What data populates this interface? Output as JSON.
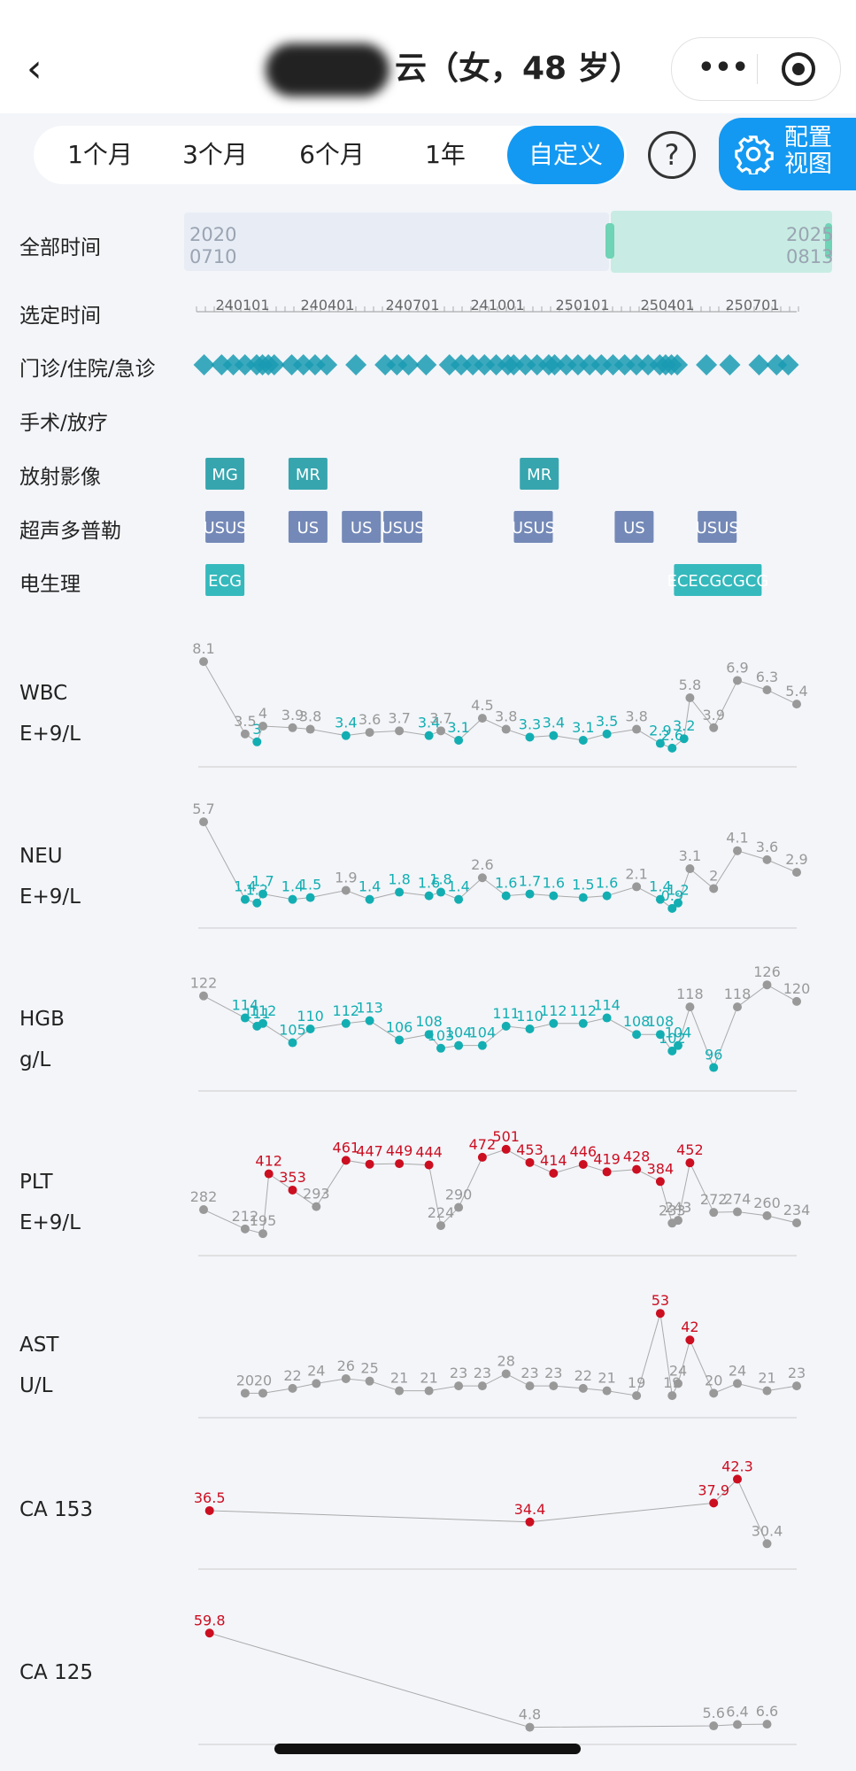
{
  "header": {
    "back_icon": "chevron-left-icon",
    "title_suffix": "云（女，48 岁）",
    "more_icon": "more-dots-icon",
    "target_icon": "record-target-icon"
  },
  "tabs": [
    {
      "label": "1个月",
      "active": false
    },
    {
      "label": "3个月",
      "active": false
    },
    {
      "label": "6个月",
      "active": false
    },
    {
      "label": "1年",
      "active": false
    },
    {
      "label": "自定义",
      "active": true
    }
  ],
  "help_label": "?",
  "config_label": "配置视图",
  "rows": {
    "all_time": "全部时间",
    "selected_time": "选定时间",
    "visits": "门诊/住院/急诊",
    "surgery": "手术/放疗",
    "radiology": "放射影像",
    "ultrasound": "超声多普勒",
    "electro": "电生理"
  },
  "range": {
    "start_year": "2020",
    "start_md": "0710",
    "end_year": "2025",
    "end_md": "0813"
  },
  "time_ticks": [
    "240101",
    "240401",
    "240701",
    "241001",
    "250101",
    "250401",
    "250701"
  ],
  "colors": {
    "accent": "#1399f2",
    "teal": "#13aeb2",
    "gray": "#999999",
    "red": "#cc0e21",
    "diamond": "#1a9bb3",
    "us": "#5d76ab"
  },
  "imaging": {
    "radiology": [
      {
        "t": 0.03,
        "label": "MG"
      },
      {
        "t": 0.17,
        "label": "MR"
      },
      {
        "t": 0.56,
        "label": "MR"
      }
    ],
    "ultrasound": [
      {
        "t": 0.03,
        "label": "USUS"
      },
      {
        "t": 0.17,
        "label": "US"
      },
      {
        "t": 0.26,
        "label": "US"
      },
      {
        "t": 0.33,
        "label": "USUS"
      },
      {
        "t": 0.55,
        "label": "USUS"
      },
      {
        "t": 0.72,
        "label": "US"
      },
      {
        "t": 0.86,
        "label": "USUS"
      }
    ],
    "electro": [
      {
        "t": 0.03,
        "label": "ECG"
      },
      {
        "t": 0.82,
        "label": "ECECGCGCG"
      }
    ]
  },
  "chart_data": [
    {
      "type": "line",
      "name": "WBC",
      "unit": "E+9/L",
      "points": [
        {
          "t": 0.0,
          "v": 8.1,
          "s": "n"
        },
        {
          "t": 0.07,
          "v": 3.5,
          "s": "n"
        },
        {
          "t": 0.09,
          "v": 3,
          "s": "l"
        },
        {
          "t": 0.1,
          "v": 4,
          "s": "n"
        },
        {
          "t": 0.15,
          "v": 3.9,
          "s": "n"
        },
        {
          "t": 0.18,
          "v": 3.8,
          "s": "n"
        },
        {
          "t": 0.24,
          "v": 3.4,
          "s": "l"
        },
        {
          "t": 0.28,
          "v": 3.6,
          "s": "n"
        },
        {
          "t": 0.33,
          "v": 3.7,
          "s": "n"
        },
        {
          "t": 0.38,
          "v": 3.4,
          "s": "l"
        },
        {
          "t": 0.4,
          "v": 3.7,
          "s": "n"
        },
        {
          "t": 0.43,
          "v": 3.1,
          "s": "l"
        },
        {
          "t": 0.47,
          "v": 4.5,
          "s": "n"
        },
        {
          "t": 0.51,
          "v": 3.8,
          "s": "n"
        },
        {
          "t": 0.55,
          "v": 3.3,
          "s": "l"
        },
        {
          "t": 0.59,
          "v": 3.4,
          "s": "l"
        },
        {
          "t": 0.64,
          "v": 3.1,
          "s": "l"
        },
        {
          "t": 0.68,
          "v": 3.5,
          "s": "l"
        },
        {
          "t": 0.73,
          "v": 3.8,
          "s": "n"
        },
        {
          "t": 0.77,
          "v": 2.9,
          "s": "l"
        },
        {
          "t": 0.79,
          "v": 2.6,
          "s": "l"
        },
        {
          "t": 0.81,
          "v": 3.2,
          "s": "l"
        },
        {
          "t": 0.82,
          "v": 5.8,
          "s": "n"
        },
        {
          "t": 0.86,
          "v": 3.9,
          "s": "n"
        },
        {
          "t": 0.9,
          "v": 6.9,
          "s": "n"
        },
        {
          "t": 0.95,
          "v": 6.3,
          "s": "n"
        },
        {
          "t": 1.0,
          "v": 5.4,
          "s": "n"
        }
      ],
      "min": 2.2,
      "max": 8.5
    },
    {
      "type": "line",
      "name": "NEU",
      "unit": "E+9/L",
      "points": [
        {
          "t": 0.0,
          "v": 5.7,
          "s": "n"
        },
        {
          "t": 0.07,
          "v": 1.4,
          "s": "l"
        },
        {
          "t": 0.09,
          "v": 1.2,
          "s": "l"
        },
        {
          "t": 0.1,
          "v": 1.7,
          "s": "l"
        },
        {
          "t": 0.15,
          "v": 1.4,
          "s": "l"
        },
        {
          "t": 0.18,
          "v": 1.5,
          "s": "l"
        },
        {
          "t": 0.24,
          "v": 1.9,
          "s": "n"
        },
        {
          "t": 0.28,
          "v": 1.4,
          "s": "l"
        },
        {
          "t": 0.33,
          "v": 1.8,
          "s": "l"
        },
        {
          "t": 0.38,
          "v": 1.6,
          "s": "l"
        },
        {
          "t": 0.4,
          "v": 1.8,
          "s": "l"
        },
        {
          "t": 0.43,
          "v": 1.4,
          "s": "l"
        },
        {
          "t": 0.47,
          "v": 2.6,
          "s": "n"
        },
        {
          "t": 0.51,
          "v": 1.6,
          "s": "l"
        },
        {
          "t": 0.55,
          "v": 1.7,
          "s": "l"
        },
        {
          "t": 0.59,
          "v": 1.6,
          "s": "l"
        },
        {
          "t": 0.64,
          "v": 1.5,
          "s": "l"
        },
        {
          "t": 0.68,
          "v": 1.6,
          "s": "l"
        },
        {
          "t": 0.73,
          "v": 2.1,
          "s": "n"
        },
        {
          "t": 0.77,
          "v": 1.4,
          "s": "l"
        },
        {
          "t": 0.79,
          "v": 0.9,
          "s": "l"
        },
        {
          "t": 0.8,
          "v": 1.2,
          "s": "l"
        },
        {
          "t": 0.82,
          "v": 3.1,
          "s": "n"
        },
        {
          "t": 0.86,
          "v": 2,
          "s": "n"
        },
        {
          "t": 0.9,
          "v": 4.1,
          "s": "n"
        },
        {
          "t": 0.95,
          "v": 3.6,
          "s": "n"
        },
        {
          "t": 1.0,
          "v": 2.9,
          "s": "n"
        }
      ],
      "min": 0.5,
      "max": 6
    },
    {
      "type": "line",
      "name": "HGB",
      "unit": "g/L",
      "points": [
        {
          "t": 0.0,
          "v": 122,
          "s": "n"
        },
        {
          "t": 0.07,
          "v": 114,
          "s": "l"
        },
        {
          "t": 0.09,
          "v": 111,
          "s": "l"
        },
        {
          "t": 0.1,
          "v": 112,
          "s": "l"
        },
        {
          "t": 0.15,
          "v": 105,
          "s": "l"
        },
        {
          "t": 0.18,
          "v": 110,
          "s": "l"
        },
        {
          "t": 0.24,
          "v": 112,
          "s": "l"
        },
        {
          "t": 0.28,
          "v": 113,
          "s": "l"
        },
        {
          "t": 0.33,
          "v": 106,
          "s": "l"
        },
        {
          "t": 0.38,
          "v": 108,
          "s": "l"
        },
        {
          "t": 0.4,
          "v": 103,
          "s": "l"
        },
        {
          "t": 0.43,
          "v": 104,
          "s": "l"
        },
        {
          "t": 0.47,
          "v": 104,
          "s": "l"
        },
        {
          "t": 0.51,
          "v": 111,
          "s": "l"
        },
        {
          "t": 0.55,
          "v": 110,
          "s": "l"
        },
        {
          "t": 0.59,
          "v": 112,
          "s": "l"
        },
        {
          "t": 0.64,
          "v": 112,
          "s": "l"
        },
        {
          "t": 0.68,
          "v": 114,
          "s": "l"
        },
        {
          "t": 0.73,
          "v": 108,
          "s": "l"
        },
        {
          "t": 0.77,
          "v": 108,
          "s": "l"
        },
        {
          "t": 0.79,
          "v": 102,
          "s": "l"
        },
        {
          "t": 0.8,
          "v": 104,
          "s": "l"
        },
        {
          "t": 0.82,
          "v": 118,
          "s": "n"
        },
        {
          "t": 0.86,
          "v": 96,
          "s": "l"
        },
        {
          "t": 0.9,
          "v": 118,
          "s": "n"
        },
        {
          "t": 0.95,
          "v": 126,
          "s": "n"
        },
        {
          "t": 1.0,
          "v": 120,
          "s": "n"
        }
      ],
      "min": 92,
      "max": 128
    },
    {
      "type": "line",
      "name": "PLT",
      "unit": "E+9/L",
      "points": [
        {
          "t": 0.0,
          "v": 282,
          "s": "n"
        },
        {
          "t": 0.07,
          "v": 212,
          "s": "n"
        },
        {
          "t": 0.1,
          "v": 195,
          "s": "n"
        },
        {
          "t": 0.11,
          "v": 412,
          "s": "h"
        },
        {
          "t": 0.15,
          "v": 353,
          "s": "h"
        },
        {
          "t": 0.19,
          "v": 293,
          "s": "n"
        },
        {
          "t": 0.24,
          "v": 461,
          "s": "h"
        },
        {
          "t": 0.28,
          "v": 447,
          "s": "h"
        },
        {
          "t": 0.33,
          "v": 449,
          "s": "h"
        },
        {
          "t": 0.38,
          "v": 444,
          "s": "h"
        },
        {
          "t": 0.4,
          "v": 224,
          "s": "n"
        },
        {
          "t": 0.43,
          "v": 290,
          "s": "n"
        },
        {
          "t": 0.47,
          "v": 472,
          "s": "h"
        },
        {
          "t": 0.51,
          "v": 501,
          "s": "h"
        },
        {
          "t": 0.55,
          "v": 453,
          "s": "h"
        },
        {
          "t": 0.59,
          "v": 414,
          "s": "h"
        },
        {
          "t": 0.64,
          "v": 446,
          "s": "h"
        },
        {
          "t": 0.68,
          "v": 419,
          "s": "h"
        },
        {
          "t": 0.73,
          "v": 428,
          "s": "h"
        },
        {
          "t": 0.77,
          "v": 384,
          "s": "h"
        },
        {
          "t": 0.79,
          "v": 233,
          "s": "n"
        },
        {
          "t": 0.8,
          "v": 243,
          "s": "n"
        },
        {
          "t": 0.82,
          "v": 452,
          "s": "h"
        },
        {
          "t": 0.86,
          "v": 272,
          "s": "n"
        },
        {
          "t": 0.9,
          "v": 274,
          "s": "n"
        },
        {
          "t": 0.95,
          "v": 260,
          "s": "n"
        },
        {
          "t": 1.0,
          "v": 234,
          "s": "n"
        }
      ],
      "min": 160,
      "max": 520
    },
    {
      "type": "line",
      "name": "AST",
      "unit": "U/L",
      "points": [
        {
          "t": 0.07,
          "v": 20,
          "s": "n"
        },
        {
          "t": 0.1,
          "v": 20,
          "s": "n"
        },
        {
          "t": 0.15,
          "v": 22,
          "s": "n"
        },
        {
          "t": 0.19,
          "v": 24,
          "s": "n"
        },
        {
          "t": 0.24,
          "v": 26,
          "s": "n"
        },
        {
          "t": 0.28,
          "v": 25,
          "s": "n"
        },
        {
          "t": 0.33,
          "v": 21,
          "s": "n"
        },
        {
          "t": 0.38,
          "v": 21,
          "s": "n"
        },
        {
          "t": 0.43,
          "v": 23,
          "s": "n"
        },
        {
          "t": 0.47,
          "v": 23,
          "s": "n"
        },
        {
          "t": 0.51,
          "v": 28,
          "s": "n"
        },
        {
          "t": 0.55,
          "v": 23,
          "s": "n"
        },
        {
          "t": 0.59,
          "v": 23,
          "s": "n"
        },
        {
          "t": 0.64,
          "v": 22,
          "s": "n"
        },
        {
          "t": 0.68,
          "v": 21,
          "s": "n"
        },
        {
          "t": 0.73,
          "v": 19,
          "s": "n"
        },
        {
          "t": 0.77,
          "v": 53,
          "s": "h"
        },
        {
          "t": 0.79,
          "v": 19,
          "s": "n"
        },
        {
          "t": 0.8,
          "v": 24,
          "s": "n"
        },
        {
          "t": 0.82,
          "v": 42,
          "s": "h"
        },
        {
          "t": 0.86,
          "v": 20,
          "s": "n"
        },
        {
          "t": 0.9,
          "v": 24,
          "s": "n"
        },
        {
          "t": 0.95,
          "v": 21,
          "s": "n"
        },
        {
          "t": 1.0,
          "v": 23,
          "s": "n"
        }
      ],
      "min": 15,
      "max": 56
    },
    {
      "type": "line",
      "name": "CA 153",
      "unit": "",
      "points": [
        {
          "t": 0.01,
          "v": 36.5,
          "s": "h"
        },
        {
          "t": 0.55,
          "v": 34.4,
          "s": "h"
        },
        {
          "t": 0.86,
          "v": 37.9,
          "s": "h"
        },
        {
          "t": 0.9,
          "v": 42.3,
          "s": "h"
        },
        {
          "t": 0.95,
          "v": 30.4,
          "s": "n"
        }
      ],
      "min": 28,
      "max": 44
    },
    {
      "type": "line",
      "name": "CA 125",
      "unit": "",
      "points": [
        {
          "t": 0.01,
          "v": 59.8,
          "s": "h"
        },
        {
          "t": 0.55,
          "v": 4.8,
          "s": "n"
        },
        {
          "t": 0.86,
          "v": 5.6,
          "s": "n"
        },
        {
          "t": 0.9,
          "v": 6.4,
          "s": "n"
        },
        {
          "t": 0.95,
          "v": 6.6,
          "s": "n"
        }
      ],
      "min": 2,
      "max": 62
    }
  ]
}
